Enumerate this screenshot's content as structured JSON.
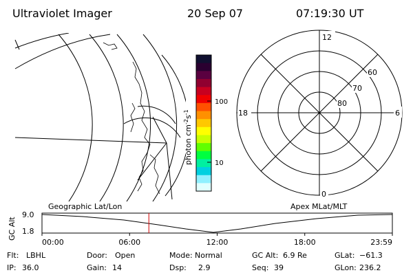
{
  "header": {
    "title": "Ultraviolet Imager",
    "date": "20 Sep 07",
    "time": "07:19:30 UT"
  },
  "colorbar": {
    "unit_label": "photon cm",
    "unit_exp1": "-2",
    "unit_s": "s",
    "unit_exp2": "-1",
    "tick_high": "100",
    "tick_low": "10",
    "colors": [
      "#101030",
      "#2a0030",
      "#5a0040",
      "#900030",
      "#c80020",
      "#f00000",
      "#ff5000",
      "#ff9000",
      "#ffc800",
      "#ffff00",
      "#c8ff00",
      "#60ff00",
      "#00ff40",
      "#00f0a0",
      "#00d0e0",
      "#90f0ff",
      "#e0ffff"
    ]
  },
  "polar": {
    "mlt_top": "12",
    "mlt_bottom": "0",
    "mlt_left": "18",
    "mlt_right": "6",
    "lat_60": "60",
    "lat_70": "70",
    "lat_80": "80"
  },
  "panels": {
    "left_caption": "Geographic Lat/Lon",
    "right_caption": "Apex MLat/MLT"
  },
  "alt_plot": {
    "ylabel": "GC Alt",
    "ytick_top": "9.0",
    "ytick_bottom": "1.8",
    "xticks": [
      "00:00",
      "06:00",
      "12:00",
      "18:00",
      "23:59"
    ],
    "current_time_fraction": 0.305,
    "marker_color": "#d00000"
  },
  "info": {
    "row1": [
      {
        "label": "Flt:",
        "value": "LBHL"
      },
      {
        "label": "Door:",
        "value": "Open"
      },
      {
        "label": "Mode:",
        "value": "Normal"
      },
      {
        "label": "GC Alt:",
        "value": "6.9 Re"
      },
      {
        "label": "GLat:",
        "value": "−61.3"
      }
    ],
    "row2": [
      {
        "label": "IP:",
        "value": "36.0"
      },
      {
        "label": "Gain:",
        "value": "14"
      },
      {
        "label": "Dsp:",
        "value": "2.9"
      },
      {
        "label": "Seq:",
        "value": "39"
      },
      {
        "label": "GLon:",
        "value": "236.2"
      }
    ]
  }
}
